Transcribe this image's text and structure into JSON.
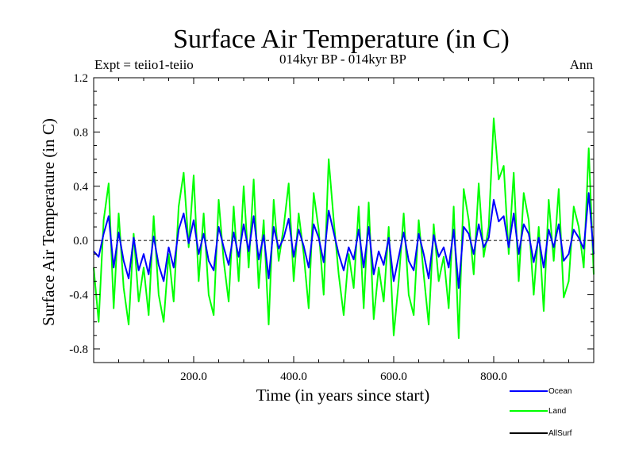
{
  "chart_data": {
    "type": "line",
    "title": "Surface Air Temperature (in C)",
    "subtitle_left": "Expt = teiio1-teiio",
    "subtitle_center": "014kyr BP - 014kyr BP",
    "subtitle_right": "Ann",
    "xlabel": "Time (in years since start)",
    "ylabel": "Surface Air Temperature (in C)",
    "xlim": [
      0,
      1000
    ],
    "ylim": [
      -0.9,
      1.2
    ],
    "x_ticks": [
      200,
      400,
      600,
      800
    ],
    "x_tick_labels": [
      "200.0",
      "400.0",
      "600.0",
      "800.0"
    ],
    "y_ticks": [
      1.2,
      0.8,
      0.4,
      0.0,
      -0.4,
      -0.8
    ],
    "y_tick_labels": [
      "1.2",
      "0.8",
      "0.4",
      "0.0",
      "-0.4",
      "-0.8"
    ],
    "reference_line": 0.0,
    "grid": false,
    "legend_position": "bottom-right, below plot",
    "series": [
      {
        "name": "Ocean",
        "color": "#0000ff",
        "x": [
          0,
          10,
          20,
          30,
          40,
          50,
          60,
          70,
          80,
          90,
          100,
          110,
          120,
          130,
          140,
          150,
          160,
          170,
          180,
          190,
          200,
          210,
          220,
          230,
          240,
          250,
          260,
          270,
          280,
          290,
          300,
          310,
          320,
          330,
          340,
          350,
          360,
          370,
          380,
          390,
          400,
          410,
          420,
          430,
          440,
          450,
          460,
          470,
          480,
          490,
          500,
          510,
          520,
          530,
          540,
          550,
          560,
          570,
          580,
          590,
          600,
          610,
          620,
          630,
          640,
          650,
          660,
          670,
          680,
          690,
          700,
          710,
          720,
          730,
          740,
          750,
          760,
          770,
          780,
          790,
          800,
          810,
          820,
          830,
          840,
          850,
          860,
          870,
          880,
          890,
          900,
          910,
          920,
          930,
          940,
          950,
          960,
          970,
          980,
          990,
          1000
        ],
        "values": [
          -0.08,
          -0.12,
          0.05,
          0.18,
          -0.2,
          0.06,
          -0.15,
          -0.28,
          0.02,
          -0.22,
          -0.1,
          -0.25,
          0.03,
          -0.18,
          -0.3,
          -0.05,
          -0.2,
          0.08,
          0.2,
          -0.02,
          0.15,
          -0.1,
          0.05,
          -0.15,
          -0.22,
          0.1,
          -0.05,
          -0.18,
          0.06,
          -0.12,
          0.12,
          -0.08,
          0.18,
          -0.14,
          0.04,
          -0.28,
          0.1,
          -0.06,
          0.02,
          0.16,
          -0.12,
          0.08,
          -0.04,
          -0.2,
          0.12,
          0.02,
          -0.16,
          0.22,
          0.06,
          -0.1,
          -0.22,
          -0.05,
          -0.14,
          0.08,
          -0.2,
          0.1,
          -0.25,
          -0.08,
          -0.18,
          0.02,
          -0.3,
          -0.12,
          0.06,
          -0.15,
          -0.22,
          0.05,
          -0.1,
          -0.28,
          0.04,
          -0.12,
          -0.05,
          -0.2,
          0.08,
          -0.35,
          0.1,
          0.05,
          -0.1,
          0.12,
          -0.05,
          0.02,
          0.3,
          0.14,
          0.18,
          -0.05,
          0.2,
          -0.1,
          0.12,
          0.05,
          -0.16,
          0.02,
          -0.2,
          0.08,
          -0.05,
          0.12,
          -0.15,
          -0.1,
          0.08,
          0.02,
          -0.06,
          0.35,
          -0.1
        ]
      },
      {
        "name": "Land",
        "color": "#00ff00",
        "x": [
          0,
          10,
          20,
          30,
          40,
          50,
          60,
          70,
          80,
          90,
          100,
          110,
          120,
          130,
          140,
          150,
          160,
          170,
          180,
          190,
          200,
          210,
          220,
          230,
          240,
          250,
          260,
          270,
          280,
          290,
          300,
          310,
          320,
          330,
          340,
          350,
          360,
          370,
          380,
          390,
          400,
          410,
          420,
          430,
          440,
          450,
          460,
          470,
          480,
          490,
          500,
          510,
          520,
          530,
          540,
          550,
          560,
          570,
          580,
          590,
          600,
          610,
          620,
          630,
          640,
          650,
          660,
          670,
          680,
          690,
          700,
          710,
          720,
          730,
          740,
          750,
          760,
          770,
          780,
          790,
          800,
          810,
          820,
          830,
          840,
          850,
          860,
          870,
          880,
          890,
          900,
          910,
          920,
          930,
          940,
          950,
          960,
          970,
          980,
          990,
          1000
        ],
        "values": [
          -0.2,
          -0.6,
          0.15,
          0.42,
          -0.5,
          0.2,
          -0.35,
          -0.62,
          0.05,
          -0.45,
          -0.2,
          -0.55,
          0.18,
          -0.4,
          -0.6,
          -0.1,
          -0.45,
          0.25,
          0.5,
          -0.05,
          0.48,
          -0.3,
          0.2,
          -0.4,
          -0.55,
          0.3,
          -0.15,
          -0.45,
          0.25,
          -0.3,
          0.4,
          -0.2,
          0.45,
          -0.35,
          0.15,
          -0.62,
          0.3,
          -0.15,
          0.1,
          0.42,
          -0.3,
          0.2,
          -0.1,
          -0.5,
          0.35,
          0.08,
          -0.4,
          0.6,
          0.15,
          -0.25,
          -0.55,
          -0.1,
          -0.35,
          0.25,
          -0.5,
          0.28,
          -0.58,
          -0.2,
          -0.45,
          0.1,
          -0.7,
          -0.3,
          0.2,
          -0.4,
          -0.55,
          0.15,
          -0.25,
          -0.62,
          0.12,
          -0.3,
          -0.12,
          -0.5,
          0.25,
          -0.72,
          0.38,
          0.15,
          -0.25,
          0.42,
          -0.12,
          0.1,
          0.9,
          0.45,
          0.55,
          -0.1,
          0.5,
          -0.3,
          0.35,
          0.15,
          -0.4,
          0.1,
          -0.52,
          0.3,
          -0.15,
          0.38,
          -0.42,
          -0.3,
          0.25,
          0.1,
          -0.2,
          0.68,
          -0.25
        ]
      },
      {
        "name": "AllSurf",
        "color": "#000000",
        "x": [],
        "values": []
      }
    ]
  }
}
